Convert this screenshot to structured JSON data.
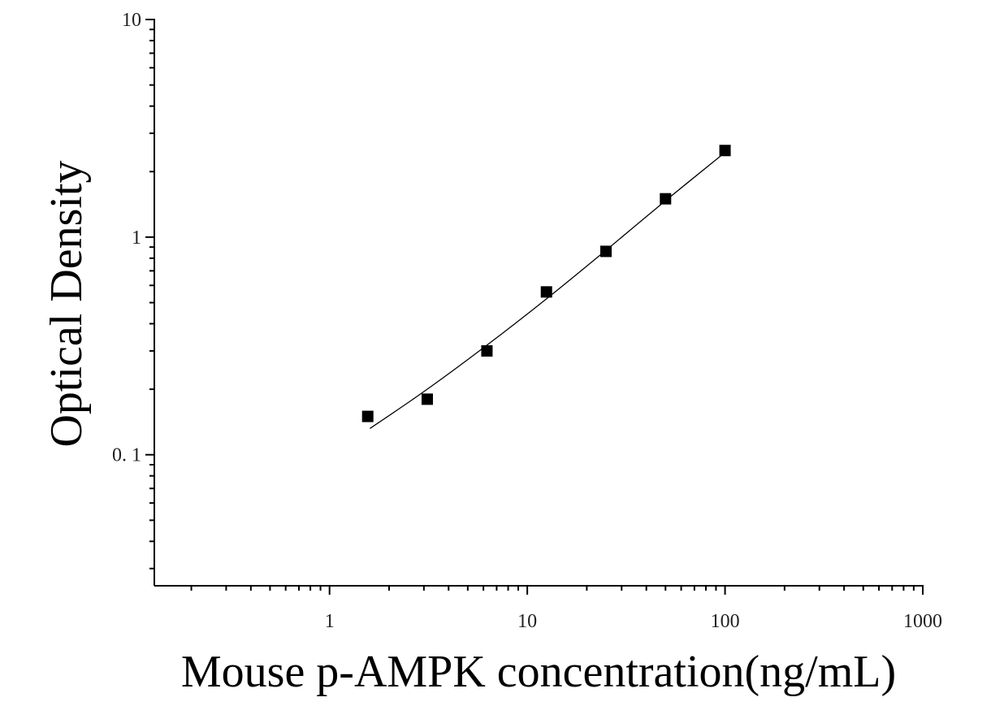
{
  "chart_data": {
    "type": "scatter",
    "title": "",
    "xlabel": "Mouse p-AMPK concentration(ng/mL)",
    "ylabel": "Optical Density",
    "x_scale": "log",
    "y_scale": "log",
    "xlim": [
      0.13,
      1000
    ],
    "ylim": [
      0.025,
      10
    ],
    "x_ticks": [
      {
        "value": 1,
        "label": "1"
      },
      {
        "value": 10,
        "label": "10"
      },
      {
        "value": 100,
        "label": "100"
      },
      {
        "value": 1000,
        "label": "1000"
      }
    ],
    "y_ticks": [
      {
        "value": 0.1,
        "label": "0. 1"
      },
      {
        "value": 1,
        "label": "1"
      },
      {
        "value": 10,
        "label": "10"
      }
    ],
    "grid": false,
    "series": [
      {
        "marker": "square",
        "color": "#000000",
        "points": [
          {
            "x": 1.56,
            "y": 0.15
          },
          {
            "x": 3.12,
            "y": 0.18
          },
          {
            "x": 6.25,
            "y": 0.3
          },
          {
            "x": 12.5,
            "y": 0.56
          },
          {
            "x": 25,
            "y": 0.86
          },
          {
            "x": 50,
            "y": 1.5
          },
          {
            "x": 100,
            "y": 2.5
          }
        ]
      }
    ],
    "fit_curve": {
      "color": "#000000",
      "points": [
        {
          "x": 1.6,
          "y": 0.132
        },
        {
          "x": 3,
          "y": 0.195
        },
        {
          "x": 6,
          "y": 0.31
        },
        {
          "x": 12.5,
          "y": 0.52
        },
        {
          "x": 25,
          "y": 0.87
        },
        {
          "x": 50,
          "y": 1.47
        },
        {
          "x": 100,
          "y": 2.45
        }
      ]
    }
  }
}
